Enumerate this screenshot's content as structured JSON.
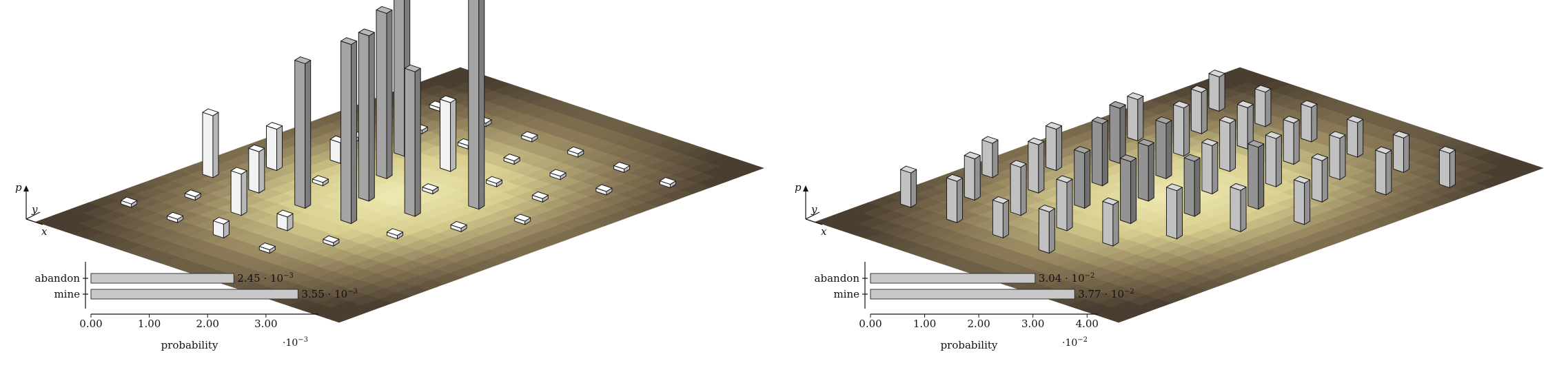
{
  "chart_data": [
    {
      "type": "bar",
      "kind": "3d-histogram-with-probability-bars",
      "axes_3d": {
        "x": "x",
        "y": "y",
        "z": "p"
      },
      "categories": [
        "abandon",
        "mine"
      ],
      "values": [
        0.00245,
        0.00355
      ],
      "value_labels": [
        "2.45 · 10",
        "3.55 · 10"
      ],
      "value_label_exp": "−3",
      "xlabel": "probability",
      "ticks": [
        "0.00",
        "1.00",
        "2.00",
        "3.00"
      ],
      "tick_values": [
        0,
        1,
        2,
        3
      ],
      "xlim": [
        0,
        3.9
      ],
      "scale_label": "·10",
      "scale_exp": "−3",
      "bar_color": "#c8c8c8",
      "surface_colors": [
        "#f0ebb4",
        "#d8cf90",
        "#8a7a58",
        "#4a3e30"
      ],
      "column_colors": {
        "light": "#e6e6e6",
        "medium": "#9c9c9c"
      },
      "columns_3d": [
        {
          "row": 0,
          "col": 1,
          "height": 0.05,
          "tone": "light"
        },
        {
          "row": 0,
          "col": 3,
          "height": 0.05,
          "tone": "light"
        },
        {
          "row": 0,
          "col": 5,
          "height": 0.05,
          "tone": "light"
        },
        {
          "row": 0,
          "col": 7,
          "height": 0.05,
          "tone": "light"
        },
        {
          "row": 0,
          "col": 9,
          "height": 0.05,
          "tone": "light"
        },
        {
          "row": 0,
          "col": 11,
          "height": 0.05,
          "tone": "light"
        },
        {
          "row": 1,
          "col": 2,
          "height": 0.05,
          "tone": "light"
        },
        {
          "row": 1,
          "col": 4,
          "height": 0.05,
          "tone": "light"
        },
        {
          "row": 1,
          "col": 6,
          "height": 0.05,
          "tone": "light"
        },
        {
          "row": 1,
          "col": 8,
          "height": 0.05,
          "tone": "light"
        },
        {
          "row": 1,
          "col": 10,
          "height": 0.05,
          "tone": "light"
        },
        {
          "row": 2,
          "col": 1,
          "height": 0.05,
          "tone": "light"
        },
        {
          "row": 2,
          "col": 3,
          "height": 2.5,
          "tone": "medium"
        },
        {
          "row": 2,
          "col": 5,
          "height": 1.0,
          "tone": "light"
        },
        {
          "row": 2,
          "col": 7,
          "height": 0.05,
          "tone": "light"
        },
        {
          "row": 2,
          "col": 9,
          "height": 0.05,
          "tone": "light"
        },
        {
          "row": 3,
          "col": 2,
          "height": 0.3,
          "tone": "light"
        },
        {
          "row": 3,
          "col": 4,
          "height": 2.4,
          "tone": "medium"
        },
        {
          "row": 3,
          "col": 6,
          "height": 0.05,
          "tone": "light"
        },
        {
          "row": 3,
          "col": 8,
          "height": 3.3,
          "tone": "medium"
        },
        {
          "row": 3,
          "col": 10,
          "height": 0.05,
          "tone": "light"
        },
        {
          "row": 4,
          "col": 1,
          "height": 0.6,
          "tone": "light"
        },
        {
          "row": 4,
          "col": 3,
          "height": 0.05,
          "tone": "light"
        },
        {
          "row": 4,
          "col": 5,
          "height": 2.4,
          "tone": "medium"
        },
        {
          "row": 4,
          "col": 7,
          "height": 2.1,
          "tone": "medium"
        },
        {
          "row": 4,
          "col": 9,
          "height": 0.05,
          "tone": "light"
        },
        {
          "row": 5,
          "col": 0,
          "height": 0.9,
          "tone": "light"
        },
        {
          "row": 5,
          "col": 2,
          "height": 0.6,
          "tone": "light"
        },
        {
          "row": 5,
          "col": 4,
          "height": 2.1,
          "tone": "medium"
        },
        {
          "row": 5,
          "col": 6,
          "height": 2.6,
          "tone": "medium"
        },
        {
          "row": 5,
          "col": 8,
          "height": 0.05,
          "tone": "light"
        },
        {
          "row": 6,
          "col": 1,
          "height": 0.05,
          "tone": "light"
        },
        {
          "row": 6,
          "col": 3,
          "height": 0.6,
          "tone": "light"
        },
        {
          "row": 6,
          "col": 5,
          "height": 0.2,
          "tone": "light"
        },
        {
          "row": 6,
          "col": 7,
          "height": 0.05,
          "tone": "light"
        },
        {
          "row": 7,
          "col": 0,
          "height": 0.05,
          "tone": "light"
        },
        {
          "row": 7,
          "col": 2,
          "height": 0.05,
          "tone": "light"
        },
        {
          "row": 7,
          "col": 4,
          "height": 0.2,
          "tone": "light"
        },
        {
          "row": 7,
          "col": 6,
          "height": 0.05,
          "tone": "light"
        }
      ]
    },
    {
      "type": "bar",
      "kind": "3d-histogram-with-probability-bars",
      "axes_3d": {
        "x": "x",
        "y": "y",
        "z": "p"
      },
      "categories": [
        "abandon",
        "mine"
      ],
      "values": [
        0.0304,
        0.0377
      ],
      "value_labels": [
        "3.04 · 10",
        "3.77 · 10"
      ],
      "value_label_exp": "−2",
      "xlabel": "probability",
      "ticks": [
        "0.00",
        "1.00",
        "2.00",
        "3.00",
        "4.00"
      ],
      "tick_values": [
        0,
        1,
        2,
        3,
        4
      ],
      "xlim": [
        0,
        4.2
      ],
      "scale_label": "·10",
      "scale_exp": "−2",
      "bar_color": "#c8c8c8",
      "surface_colors": [
        "#f0ebb4",
        "#d8cf90",
        "#8a7a58",
        "#4a3e30"
      ],
      "column_colors": {
        "light": "#b8b8b8",
        "medium": "#8c8c8c"
      },
      "columns_3d": [
        {
          "row": 0,
          "col": 1,
          "height": 0.5,
          "tone": "light"
        },
        {
          "row": 0,
          "col": 3,
          "height": 0.5,
          "tone": "light"
        },
        {
          "row": 0,
          "col": 5,
          "height": 0.5,
          "tone": "light"
        },
        {
          "row": 0,
          "col": 7,
          "height": 0.5,
          "tone": "light"
        },
        {
          "row": 0,
          "col": 9,
          "height": 0.5,
          "tone": "light"
        },
        {
          "row": 0,
          "col": 11,
          "height": 0.5,
          "tone": "light"
        },
        {
          "row": 1,
          "col": 2,
          "height": 0.6,
          "tone": "light"
        },
        {
          "row": 1,
          "col": 4,
          "height": 0.6,
          "tone": "light"
        },
        {
          "row": 1,
          "col": 6,
          "height": 0.6,
          "tone": "light"
        },
        {
          "row": 1,
          "col": 8,
          "height": 0.6,
          "tone": "light"
        },
        {
          "row": 1,
          "col": 10,
          "height": 0.6,
          "tone": "light"
        },
        {
          "row": 2,
          "col": 1,
          "height": 0.6,
          "tone": "light"
        },
        {
          "row": 2,
          "col": 3,
          "height": 0.7,
          "tone": "light"
        },
        {
          "row": 2,
          "col": 5,
          "height": 0.7,
          "tone": "light"
        },
        {
          "row": 2,
          "col": 7,
          "height": 0.7,
          "tone": "light"
        },
        {
          "row": 2,
          "col": 9,
          "height": 0.6,
          "tone": "light"
        },
        {
          "row": 3,
          "col": 2,
          "height": 0.8,
          "tone": "medium"
        },
        {
          "row": 3,
          "col": 4,
          "height": 0.8,
          "tone": "medium"
        },
        {
          "row": 3,
          "col": 6,
          "height": 0.7,
          "tone": "light"
        },
        {
          "row": 3,
          "col": 8,
          "height": 0.9,
          "tone": "medium"
        },
        {
          "row": 3,
          "col": 10,
          "height": 0.6,
          "tone": "light"
        },
        {
          "row": 4,
          "col": 1,
          "height": 0.6,
          "tone": "light"
        },
        {
          "row": 4,
          "col": 3,
          "height": 0.9,
          "tone": "medium"
        },
        {
          "row": 4,
          "col": 5,
          "height": 0.8,
          "tone": "medium"
        },
        {
          "row": 4,
          "col": 7,
          "height": 0.8,
          "tone": "medium"
        },
        {
          "row": 4,
          "col": 9,
          "height": 0.6,
          "tone": "light"
        },
        {
          "row": 5,
          "col": 0,
          "height": 0.5,
          "tone": "light"
        },
        {
          "row": 5,
          "col": 2,
          "height": 0.7,
          "tone": "light"
        },
        {
          "row": 5,
          "col": 4,
          "height": 0.8,
          "tone": "medium"
        },
        {
          "row": 5,
          "col": 6,
          "height": 0.9,
          "tone": "medium"
        },
        {
          "row": 5,
          "col": 8,
          "height": 0.7,
          "tone": "light"
        },
        {
          "row": 6,
          "col": 1,
          "height": 0.6,
          "tone": "light"
        },
        {
          "row": 6,
          "col": 3,
          "height": 0.7,
          "tone": "light"
        },
        {
          "row": 6,
          "col": 5,
          "height": 0.7,
          "tone": "light"
        },
        {
          "row": 6,
          "col": 7,
          "height": 0.6,
          "tone": "light"
        },
        {
          "row": 7,
          "col": 0,
          "height": 0.5,
          "tone": "light"
        },
        {
          "row": 7,
          "col": 2,
          "height": 0.6,
          "tone": "light"
        },
        {
          "row": 7,
          "col": 4,
          "height": 0.5,
          "tone": "light"
        },
        {
          "row": 7,
          "col": 6,
          "height": 0.6,
          "tone": "light"
        }
      ]
    }
  ]
}
